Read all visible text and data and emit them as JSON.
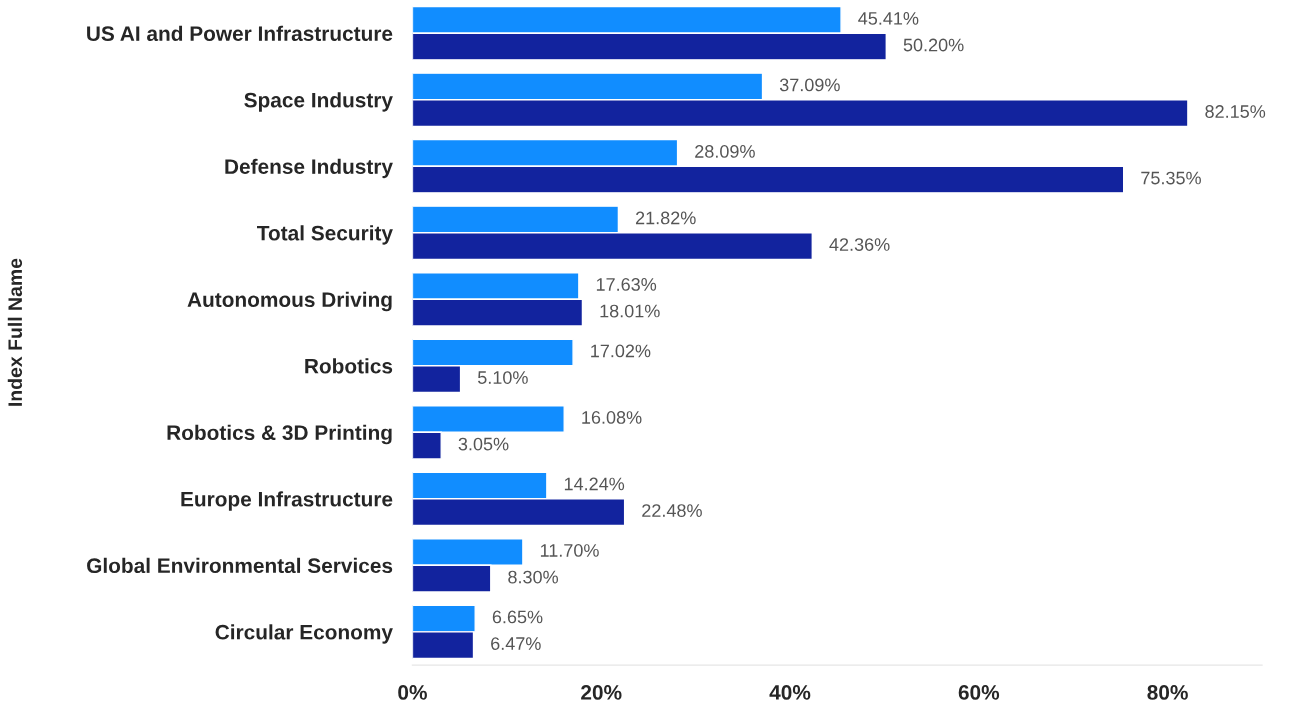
{
  "chart_data": {
    "type": "bar",
    "orientation": "horizontal",
    "ylabel": "Index Full Name",
    "categories": [
      "US AI and Power Infrastructure",
      "Space Industry",
      "Defense Industry",
      "Total Security",
      "Autonomous Driving",
      "Robotics",
      "Robotics & 3D Printing",
      "Europe Infrastructure",
      "Global Environmental Services",
      "Circular Economy"
    ],
    "series": [
      {
        "color": "#118dff",
        "values": [
          45.41,
          37.09,
          28.09,
          21.82,
          17.63,
          17.02,
          16.08,
          14.24,
          11.7,
          6.65
        ],
        "value_labels": [
          "45.41%",
          "37.09%",
          "28.09%",
          "21.82%",
          "17.63%",
          "17.02%",
          "16.08%",
          "14.24%",
          "11.70%",
          "6.65%"
        ]
      },
      {
        "color": "#12239e",
        "values": [
          50.2,
          82.15,
          75.35,
          42.36,
          18.01,
          5.1,
          3.05,
          22.48,
          8.3,
          6.47
        ],
        "value_labels": [
          "50.20%",
          "82.15%",
          "75.35%",
          "42.36%",
          "18.01%",
          "5.10%",
          "3.05%",
          "22.48%",
          "8.30%",
          "6.47%"
        ]
      }
    ],
    "xlim": [
      0,
      90
    ],
    "xticks": [
      {
        "value": 0,
        "label": "0%"
      },
      {
        "value": 20,
        "label": "20%"
      },
      {
        "value": 40,
        "label": "40%"
      },
      {
        "value": 60,
        "label": "60%"
      },
      {
        "value": 80,
        "label": "80%"
      }
    ],
    "grid": false,
    "legend": false
  }
}
